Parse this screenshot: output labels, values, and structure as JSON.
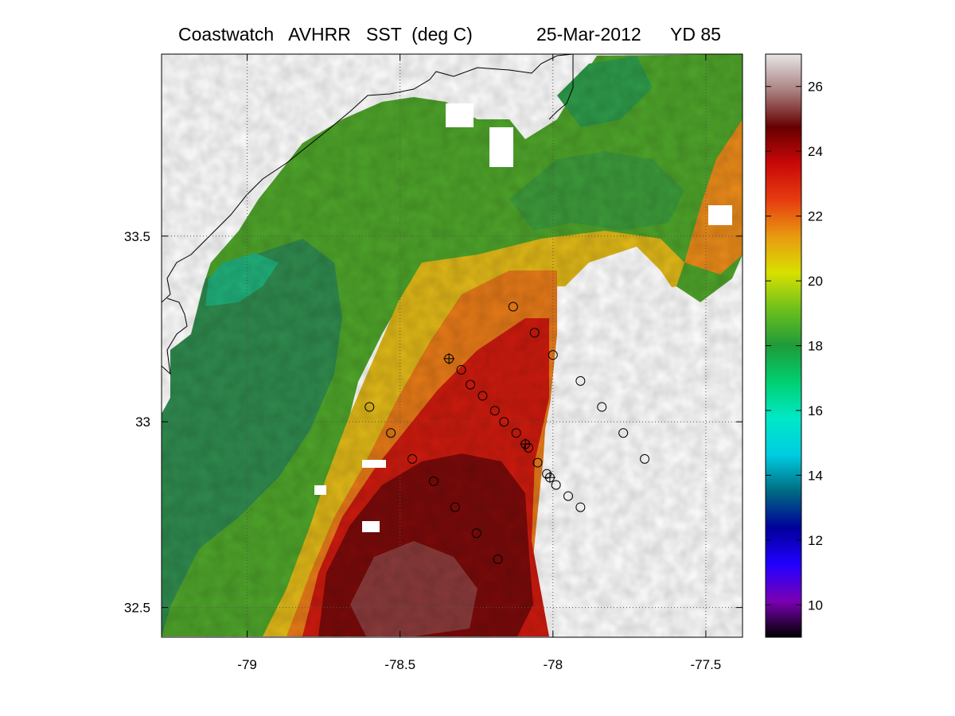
{
  "title": {
    "product": "Coastwatch   AVHRR   SST  (deg C)",
    "date": "25-Mar-2012",
    "yearday": "YD 85"
  },
  "map": {
    "lon_range": [
      -79.28,
      -77.38
    ],
    "lat_range": [
      32.42,
      33.99
    ],
    "lon_ticks": [
      "-79",
      "-78.5",
      "-78",
      "-77.5"
    ],
    "lon_tick_values": [
      -79,
      -78.5,
      -78,
      -77.5
    ],
    "lat_ticks": [
      "33.5",
      "33",
      "32.5"
    ],
    "lat_tick_values": [
      33.5,
      33,
      32.5
    ],
    "grid": "dotted",
    "no_data_color": "#ffffff",
    "coastline_color": "#000000"
  },
  "colorbar": {
    "range": [
      9,
      27
    ],
    "ticks": [
      "10",
      "12",
      "14",
      "16",
      "18",
      "20",
      "22",
      "24",
      "26"
    ],
    "tick_values": [
      10,
      12,
      14,
      16,
      18,
      20,
      22,
      24,
      26
    ],
    "colormap": [
      "#000000",
      "#7a00b4",
      "#2200ff",
      "#00009a",
      "#006a82",
      "#00cce0",
      "#00e8c8",
      "#00d070",
      "#1f9a3a",
      "#6cc01c",
      "#d8e000",
      "#e89a10",
      "#e63c10",
      "#c80808",
      "#660000",
      "#aa8080",
      "#e6e6e6"
    ]
  },
  "stations": {
    "marker": "circle",
    "points": [
      {
        "lon": -78.13,
        "lat": 33.31
      },
      {
        "lon": -78.06,
        "lat": 33.24
      },
      {
        "lon": -78.0,
        "lat": 33.18
      },
      {
        "lon": -77.91,
        "lat": 33.11
      },
      {
        "lon": -77.84,
        "lat": 33.04
      },
      {
        "lon": -77.77,
        "lat": 32.97
      },
      {
        "lon": -77.7,
        "lat": 32.9
      },
      {
        "lon": -78.34,
        "lat": 33.17
      },
      {
        "lon": -78.3,
        "lat": 33.14
      },
      {
        "lon": -78.27,
        "lat": 33.1
      },
      {
        "lon": -78.23,
        "lat": 33.07
      },
      {
        "lon": -78.19,
        "lat": 33.03
      },
      {
        "lon": -78.16,
        "lat": 33.0
      },
      {
        "lon": -78.12,
        "lat": 32.97
      },
      {
        "lon": -78.09,
        "lat": 32.94
      },
      {
        "lon": -78.08,
        "lat": 32.93
      },
      {
        "lon": -78.05,
        "lat": 32.89
      },
      {
        "lon": -78.02,
        "lat": 32.86
      },
      {
        "lon": -78.01,
        "lat": 32.85
      },
      {
        "lon": -77.99,
        "lat": 32.83
      },
      {
        "lon": -77.95,
        "lat": 32.8
      },
      {
        "lon": -77.91,
        "lat": 32.77
      },
      {
        "lon": -78.6,
        "lat": 33.04
      },
      {
        "lon": -78.53,
        "lat": 32.97
      },
      {
        "lon": -78.46,
        "lat": 32.9
      },
      {
        "lon": -78.39,
        "lat": 32.84
      },
      {
        "lon": -78.32,
        "lat": 32.77
      },
      {
        "lon": -78.25,
        "lat": 32.7
      },
      {
        "lon": -78.18,
        "lat": 32.63
      }
    ],
    "crossed": [
      {
        "lon": -78.34,
        "lat": 33.17
      },
      {
        "lon": -78.09,
        "lat": 32.94
      },
      {
        "lon": -78.01,
        "lat": 32.85
      }
    ]
  }
}
